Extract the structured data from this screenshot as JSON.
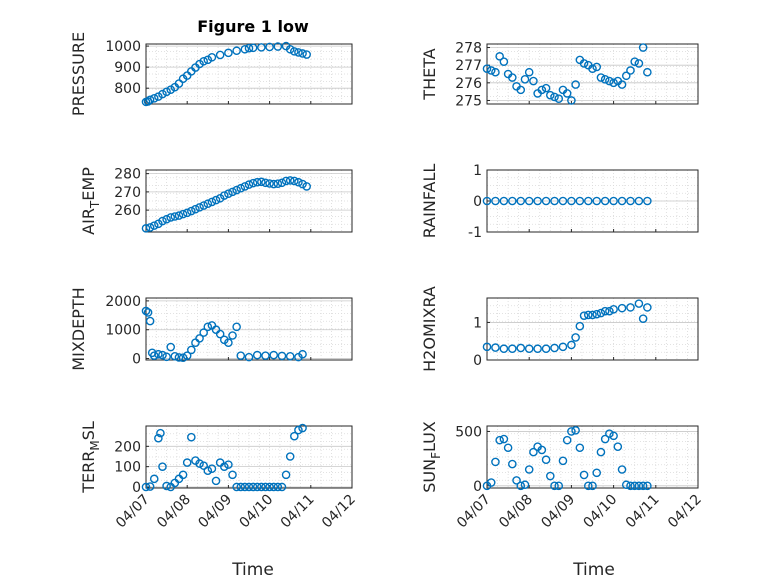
{
  "figure_title": "Figure 1 low",
  "xlabel": "Time",
  "x_ticks": [
    "04/07",
    "04/08",
    "04/09",
    "04/10",
    "04/11",
    "04/12"
  ],
  "marker_color": "#0072BD",
  "chart_data": [
    {
      "type": "scatter",
      "name": "pressure",
      "ylabel": "PRESSURE",
      "ylim": [
        725,
        1010
      ],
      "yticks": [
        800,
        900,
        1000
      ],
      "x": [
        0.0,
        0.05,
        0.1,
        0.2,
        0.3,
        0.4,
        0.5,
        0.6,
        0.7,
        0.8,
        0.9,
        1.0,
        1.1,
        1.2,
        1.3,
        1.4,
        1.5,
        1.6,
        1.8,
        2.0,
        2.2,
        2.4,
        2.5,
        2.6,
        2.8,
        3.0,
        3.2,
        3.4,
        3.5,
        3.6,
        3.7,
        3.8,
        3.9
      ],
      "y": [
        735,
        737,
        745,
        752,
        760,
        772,
        783,
        793,
        805,
        822,
        845,
        860,
        880,
        898,
        915,
        928,
        935,
        947,
        958,
        968,
        978,
        985,
        990,
        992,
        994,
        996,
        998,
        1000,
        985,
        975,
        970,
        965,
        960
      ]
    },
    {
      "type": "scatter",
      "name": "theta",
      "ylabel": "THETA",
      "ylim": [
        274.8,
        278.2
      ],
      "yticks": [
        275,
        276,
        277,
        278
      ],
      "x": [
        0.0,
        0.1,
        0.2,
        0.3,
        0.4,
        0.5,
        0.6,
        0.7,
        0.8,
        0.9,
        1.0,
        1.1,
        1.2,
        1.3,
        1.4,
        1.5,
        1.6,
        1.7,
        1.8,
        1.9,
        2.0,
        2.1,
        2.2,
        2.3,
        2.4,
        2.5,
        2.6,
        2.7,
        2.8,
        2.9,
        3.0,
        3.1,
        3.2,
        3.3,
        3.4,
        3.5,
        3.6,
        3.7,
        3.8
      ],
      "y": [
        276.8,
        276.7,
        276.6,
        277.5,
        277.2,
        276.5,
        276.3,
        275.8,
        275.6,
        276.2,
        276.6,
        276.1,
        275.4,
        275.6,
        275.7,
        275.3,
        275.2,
        275.1,
        275.6,
        275.4,
        275.0,
        275.9,
        277.3,
        277.1,
        277.0,
        276.8,
        276.9,
        276.3,
        276.2,
        276.1,
        276.0,
        276.1,
        275.9,
        276.4,
        276.7,
        277.2,
        277.1,
        278.0,
        276.6
      ]
    },
    {
      "type": "scatter",
      "name": "air_temp",
      "ylabel": "AIR_TEMP",
      "ylim": [
        248,
        282
      ],
      "yticks": [
        260,
        270,
        280
      ],
      "x": [
        0.0,
        0.1,
        0.2,
        0.3,
        0.4,
        0.5,
        0.6,
        0.7,
        0.8,
        0.9,
        1.0,
        1.1,
        1.2,
        1.3,
        1.4,
        1.5,
        1.6,
        1.7,
        1.8,
        1.9,
        2.0,
        2.1,
        2.2,
        2.3,
        2.4,
        2.5,
        2.6,
        2.7,
        2.8,
        2.9,
        3.0,
        3.1,
        3.2,
        3.3,
        3.4,
        3.5,
        3.6,
        3.7,
        3.8,
        3.9
      ],
      "y": [
        250,
        250.5,
        251.5,
        252.5,
        254,
        255,
        256,
        256.5,
        257,
        257.8,
        258.5,
        259.5,
        260.5,
        261.5,
        262.5,
        263.5,
        264.5,
        265.5,
        266.5,
        268,
        269,
        270,
        271,
        272,
        273,
        274,
        274.8,
        275.3,
        275.5,
        275.0,
        274.6,
        274.3,
        274.5,
        275,
        276,
        276.3,
        276,
        275.3,
        274.3,
        273
      ]
    },
    {
      "type": "scatter",
      "name": "rainfall",
      "ylabel": "RAINFALL",
      "ylim": [
        -1,
        1
      ],
      "yticks": [
        -1,
        0,
        1
      ],
      "x": [
        0.0,
        0.2,
        0.4,
        0.6,
        0.8,
        1.0,
        1.2,
        1.4,
        1.6,
        1.8,
        2.0,
        2.2,
        2.4,
        2.6,
        2.8,
        3.0,
        3.2,
        3.4,
        3.6,
        3.8
      ],
      "y": [
        0,
        0,
        0,
        0,
        0,
        0,
        0,
        0,
        0,
        0,
        0,
        0,
        0,
        0,
        0,
        0,
        0,
        0,
        0,
        0
      ]
    },
    {
      "type": "scatter",
      "name": "mixdepth",
      "ylabel": "MIXDEPTH",
      "ylim": [
        -50,
        2100
      ],
      "yticks": [
        0,
        1000,
        2000
      ],
      "x": [
        0.0,
        0.05,
        0.1,
        0.15,
        0.2,
        0.3,
        0.4,
        0.5,
        0.6,
        0.7,
        0.8,
        0.9,
        1.0,
        1.1,
        1.2,
        1.3,
        1.4,
        1.5,
        1.6,
        1.7,
        1.8,
        1.9,
        2.0,
        2.1,
        2.2,
        2.3,
        2.5,
        2.7,
        2.9,
        3.1,
        3.3,
        3.5,
        3.7,
        3.8
      ],
      "y": [
        1650,
        1600,
        1300,
        200,
        100,
        150,
        120,
        60,
        400,
        80,
        40,
        30,
        100,
        300,
        550,
        700,
        900,
        1100,
        1150,
        1000,
        850,
        650,
        550,
        800,
        1100,
        100,
        50,
        120,
        100,
        120,
        90,
        80,
        50,
        150
      ]
    },
    {
      "type": "scatter",
      "name": "h2omixra",
      "ylabel": "H2OMIXRA",
      "ylim": [
        0,
        1.65
      ],
      "yticks": [
        0,
        1
      ],
      "x": [
        0.0,
        0.2,
        0.4,
        0.6,
        0.8,
        1.0,
        1.2,
        1.4,
        1.6,
        1.8,
        2.0,
        2.1,
        2.2,
        2.3,
        2.4,
        2.5,
        2.6,
        2.7,
        2.8,
        2.9,
        3.0,
        3.2,
        3.4,
        3.6,
        3.7,
        3.8
      ],
      "y": [
        0.35,
        0.33,
        0.3,
        0.3,
        0.32,
        0.3,
        0.3,
        0.3,
        0.32,
        0.35,
        0.4,
        0.6,
        0.9,
        1.18,
        1.2,
        1.2,
        1.22,
        1.25,
        1.3,
        1.3,
        1.35,
        1.38,
        1.4,
        1.5,
        1.1,
        1.4
      ]
    },
    {
      "type": "scatter",
      "name": "terr_msl",
      "ylabel": "TERR_MSL",
      "ylim": [
        -5,
        300
      ],
      "yticks": [
        0,
        100,
        200
      ],
      "x": [
        0.0,
        0.1,
        0.2,
        0.3,
        0.35,
        0.4,
        0.5,
        0.6,
        0.7,
        0.8,
        0.9,
        1.0,
        1.1,
        1.2,
        1.3,
        1.4,
        1.5,
        1.6,
        1.7,
        1.8,
        1.9,
        2.0,
        2.1,
        2.2,
        2.3,
        2.4,
        2.5,
        2.6,
        2.7,
        2.8,
        2.9,
        3.0,
        3.1,
        3.2,
        3.3,
        3.4,
        3.5,
        3.6,
        3.7,
        3.8
      ],
      "y": [
        0,
        2,
        40,
        240,
        265,
        100,
        5,
        0,
        20,
        40,
        60,
        120,
        245,
        130,
        115,
        105,
        80,
        90,
        30,
        120,
        100,
        110,
        60,
        0,
        0,
        0,
        0,
        0,
        0,
        0,
        0,
        0,
        0,
        0,
        0,
        60,
        150,
        250,
        280,
        290
      ]
    },
    {
      "type": "scatter",
      "name": "sun_flux",
      "ylabel": "SUN_FLUX",
      "ylim": [
        -20,
        550
      ],
      "yticks": [
        0,
        500
      ],
      "x": [
        0.0,
        0.1,
        0.2,
        0.3,
        0.4,
        0.5,
        0.6,
        0.7,
        0.8,
        0.9,
        1.0,
        1.1,
        1.2,
        1.3,
        1.4,
        1.5,
        1.6,
        1.7,
        1.8,
        1.9,
        2.0,
        2.1,
        2.2,
        2.3,
        2.4,
        2.5,
        2.6,
        2.7,
        2.8,
        2.9,
        3.0,
        3.1,
        3.2,
        3.3,
        3.4,
        3.5,
        3.6,
        3.7,
        3.8
      ],
      "y": [
        0,
        30,
        220,
        420,
        430,
        350,
        200,
        50,
        0,
        10,
        150,
        310,
        360,
        330,
        240,
        90,
        0,
        0,
        230,
        420,
        500,
        510,
        350,
        100,
        0,
        0,
        120,
        310,
        430,
        480,
        460,
        360,
        150,
        10,
        0,
        0,
        0,
        0,
        0
      ]
    }
  ]
}
